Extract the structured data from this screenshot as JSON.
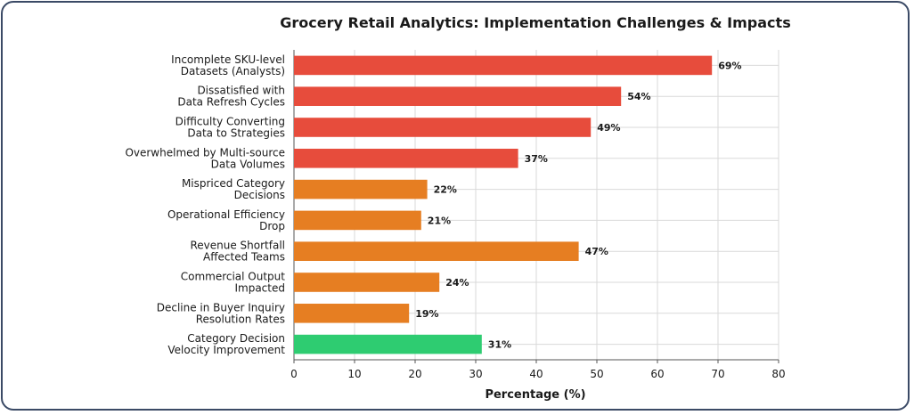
{
  "chart_data": {
    "type": "bar",
    "orientation": "horizontal",
    "title": "Grocery Retail Analytics: Implementation Challenges & Impacts",
    "xlabel": "Percentage (%)",
    "ylabel": "",
    "xlim": [
      0,
      80
    ],
    "xticks": [
      0,
      10,
      20,
      30,
      40,
      50,
      60,
      70,
      80
    ],
    "grid": true,
    "categories": [
      [
        "Incomplete SKU-level",
        "Datasets (Analysts)"
      ],
      [
        "Dissatisfied with",
        "Data Refresh Cycles"
      ],
      [
        "Difficulty Converting",
        "Data to Strategies"
      ],
      [
        "Overwhelmed by Multi-source",
        "Data Volumes"
      ],
      [
        "Mispriced Category",
        "Decisions"
      ],
      [
        "Operational Efficiency",
        "Drop"
      ],
      [
        "Revenue Shortfall",
        "Affected Teams"
      ],
      [
        "Commercial Output",
        "Impacted"
      ],
      [
        "Decline in Buyer Inquiry",
        "Resolution Rates"
      ],
      [
        "Category Decision",
        "Velocity Improvement"
      ]
    ],
    "values": [
      69,
      54,
      49,
      37,
      22,
      21,
      47,
      24,
      19,
      31
    ],
    "data_labels": [
      "69%",
      "54%",
      "49%",
      "37%",
      "22%",
      "21%",
      "47%",
      "24%",
      "19%",
      "31%"
    ],
    "colors": [
      "#e74c3c",
      "#e74c3c",
      "#e74c3c",
      "#e74c3c",
      "#e67e22",
      "#e67e22",
      "#e67e22",
      "#e67e22",
      "#e67e22",
      "#2ecc71"
    ]
  }
}
